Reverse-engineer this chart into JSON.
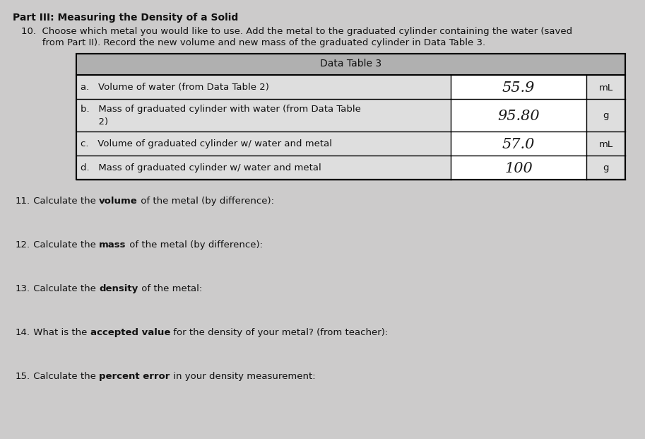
{
  "background_color": "#cccbcb",
  "title_bold": "Part III: Measuring the Density of a Solid",
  "line10a": "10.  Choose which metal you would like to use. Add the metal to the graduated cylinder containing the water (saved",
  "line10b": "       from Part II). Record the new volume and new mass of the graduated cylinder in Data Table 3.",
  "table_header": "Data Table 3",
  "table_rows": [
    {
      "label": "a.   Volume of water (from Data Table 2)",
      "value": "55.9",
      "unit": "mL"
    },
    {
      "label_line1": "b.   Mass of graduated cylinder with water (from Data Table",
      "label_line2": "      2)",
      "value": "95.80",
      "unit": "g"
    },
    {
      "label": "c.   Volume of graduated cylinder w/ water and metal",
      "value": "57.0",
      "unit": "mL"
    },
    {
      "label": "d.   Mass of graduated cylinder w/ water and metal",
      "value": "100",
      "unit": "g"
    }
  ],
  "items": [
    {
      "num": "11.",
      "pre": " Calculate the ",
      "bold": "volume",
      "post": " of the metal (by difference):"
    },
    {
      "num": "12.",
      "pre": " Calculate the ",
      "bold": "mass",
      "post": " of the metal (by difference):"
    },
    {
      "num": "13.",
      "pre": " Calculate the ",
      "bold": "density",
      "post": " of the metal:"
    },
    {
      "num": "14.",
      "pre": " What is the ",
      "bold": "accepted value",
      "post": " for the density of your metal? (from teacher):"
    },
    {
      "num": "15.",
      "pre": " Calculate the ",
      "bold": "percent error",
      "post": " in your density measurement:"
    }
  ],
  "header_bg": "#b0b0b0",
  "row_bg": "#dedede",
  "value_bg": "#ffffff",
  "table_border": "#000000",
  "font_size_body": 9.5,
  "font_size_title": 10,
  "font_size_table_header": 10,
  "font_size_value": 15,
  "text_color": "#111111",
  "handwriting_color": "#1a1a1a"
}
